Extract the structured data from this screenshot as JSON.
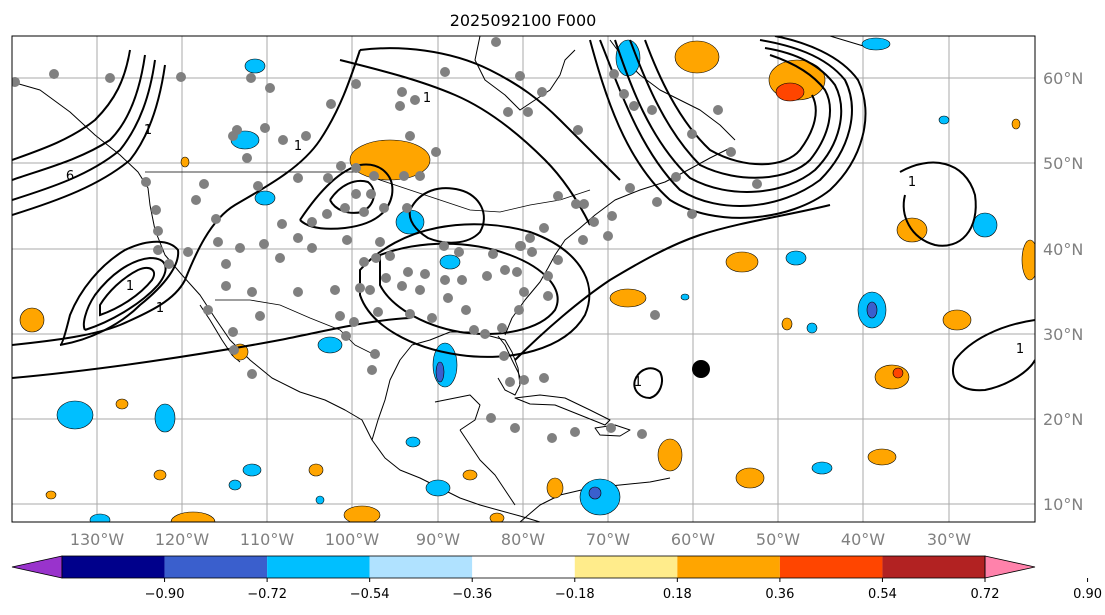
{
  "title": "2025092100 F000",
  "longitude_labels": [
    "130°W",
    "120°W",
    "110°W",
    "100°W",
    "90°W",
    "80°W",
    "70°W",
    "60°W",
    "50°W",
    "40°W",
    "30°W"
  ],
  "latitude_labels": [
    "60°N",
    "50°N",
    "40°N",
    "30°N",
    "20°N",
    "10°N"
  ],
  "colorbar": {
    "tick_labels": [
      "−0.90",
      "−0.72",
      "−0.54",
      "−0.36",
      "−0.18",
      "0.18",
      "0.36",
      "0.54",
      "0.72",
      "0.90"
    ],
    "colors": [
      "#9933cc",
      "#00008b",
      "#3a5fcd",
      "#00bfff",
      "#b0e2ff",
      "#ffffff",
      "#ffec8b",
      "#ffa500",
      "#ff4500",
      "#b22222",
      "#ff82ab"
    ],
    "extend": "both"
  },
  "contour_labels": [
    "6",
    "1",
    "1",
    "1",
    "1",
    "1",
    "1",
    "1",
    "1"
  ],
  "colors": {
    "land_border": "#000000",
    "grid": "#999999",
    "observation_marker": "#808080",
    "highlight_marker": "#000000"
  }
}
